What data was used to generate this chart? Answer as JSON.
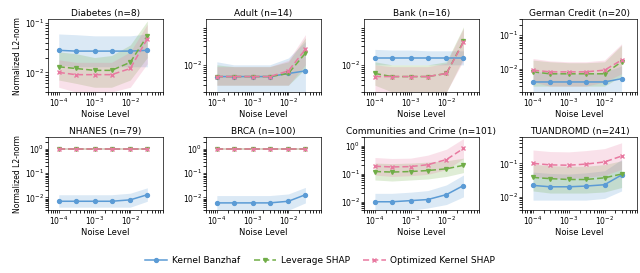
{
  "noise_levels": [
    0.0001,
    0.0003,
    0.001,
    0.003,
    0.01,
    0.03
  ],
  "panels": [
    {
      "title": "Diabetes (n=8)",
      "row": 0,
      "col": 0,
      "ylim": [
        0.004,
        0.12
      ],
      "yticks": [
        0.01,
        0.1
      ],
      "kb_mean": [
        0.028,
        0.027,
        0.027,
        0.027,
        0.027,
        0.028
      ],
      "kb_lo": [
        0.014,
        0.013,
        0.013,
        0.013,
        0.013,
        0.013
      ],
      "kb_hi": [
        0.06,
        0.058,
        0.055,
        0.055,
        0.055,
        0.06
      ],
      "ls_mean": [
        0.013,
        0.012,
        0.011,
        0.011,
        0.016,
        0.055
      ],
      "ls_lo": [
        0.007,
        0.006,
        0.005,
        0.005,
        0.007,
        0.02
      ],
      "ls_hi": [
        0.026,
        0.024,
        0.02,
        0.022,
        0.036,
        0.11
      ],
      "ok_mean": [
        0.01,
        0.009,
        0.009,
        0.009,
        0.012,
        0.048
      ],
      "ok_lo": [
        0.005,
        0.004,
        0.004,
        0.004,
        0.005,
        0.015
      ],
      "ok_hi": [
        0.018,
        0.016,
        0.016,
        0.016,
        0.026,
        0.095
      ]
    },
    {
      "title": "Adult (n=14)",
      "row": 0,
      "col": 1,
      "ylim": [
        0.002,
        0.15
      ],
      "yticks": [
        0.01
      ],
      "kb_mean": [
        0.005,
        0.005,
        0.005,
        0.005,
        0.006,
        0.007
      ],
      "kb_lo": [
        0.002,
        0.002,
        0.002,
        0.002,
        0.002,
        0.002
      ],
      "kb_hi": [
        0.012,
        0.01,
        0.01,
        0.01,
        0.015,
        0.04
      ],
      "ls_mean": [
        0.005,
        0.005,
        0.005,
        0.005,
        0.006,
        0.02
      ],
      "ls_lo": [
        0.003,
        0.003,
        0.003,
        0.003,
        0.003,
        0.008
      ],
      "ls_hi": [
        0.01,
        0.009,
        0.009,
        0.009,
        0.012,
        0.05
      ],
      "ok_mean": [
        0.005,
        0.005,
        0.005,
        0.005,
        0.007,
        0.025
      ],
      "ok_lo": [
        0.003,
        0.003,
        0.003,
        0.003,
        0.003,
        0.01
      ],
      "ok_hi": [
        0.009,
        0.009,
        0.009,
        0.009,
        0.013,
        0.06
      ]
    },
    {
      "title": "Bank (n=16)",
      "row": 0,
      "col": 2,
      "ylim": [
        0.002,
        0.15
      ],
      "yticks": [
        0.01
      ],
      "kb_mean": [
        0.015,
        0.015,
        0.015,
        0.015,
        0.015,
        0.015
      ],
      "kb_lo": [
        0.01,
        0.01,
        0.01,
        0.01,
        0.01,
        0.01
      ],
      "kb_hi": [
        0.025,
        0.024,
        0.024,
        0.023,
        0.023,
        0.023
      ],
      "ls_mean": [
        0.006,
        0.005,
        0.005,
        0.005,
        0.006,
        0.04
      ],
      "ls_lo": [
        0.003,
        0.002,
        0.002,
        0.002,
        0.002,
        0.015
      ],
      "ls_hi": [
        0.012,
        0.01,
        0.01,
        0.01,
        0.012,
        0.095
      ],
      "ok_mean": [
        0.005,
        0.005,
        0.005,
        0.005,
        0.006,
        0.038
      ],
      "ok_lo": [
        0.002,
        0.002,
        0.002,
        0.002,
        0.002,
        0.013
      ],
      "ok_hi": [
        0.01,
        0.009,
        0.009,
        0.009,
        0.011,
        0.088
      ]
    },
    {
      "title": "German Credit (n=20)",
      "row": 0,
      "col": 3,
      "ylim": [
        0.002,
        0.3
      ],
      "yticks": [
        0.01,
        0.1
      ],
      "kb_mean": [
        0.004,
        0.004,
        0.004,
        0.004,
        0.004,
        0.005
      ],
      "kb_lo": [
        0.002,
        0.002,
        0.002,
        0.002,
        0.002,
        0.002
      ],
      "kb_hi": [
        0.008,
        0.008,
        0.007,
        0.007,
        0.008,
        0.012
      ],
      "ls_mean": [
        0.008,
        0.007,
        0.007,
        0.007,
        0.007,
        0.016
      ],
      "ls_lo": [
        0.003,
        0.003,
        0.003,
        0.003,
        0.003,
        0.006
      ],
      "ls_hi": [
        0.018,
        0.016,
        0.015,
        0.015,
        0.016,
        0.05
      ],
      "ok_mean": [
        0.009,
        0.008,
        0.008,
        0.008,
        0.009,
        0.018
      ],
      "ok_lo": [
        0.004,
        0.003,
        0.003,
        0.003,
        0.004,
        0.007
      ],
      "ok_hi": [
        0.02,
        0.017,
        0.016,
        0.016,
        0.018,
        0.055
      ]
    },
    {
      "title": "NHANES (n=79)",
      "row": 1,
      "col": 0,
      "ylim": [
        0.003,
        3.0
      ],
      "yticks": [
        0.01,
        0.1,
        1.0
      ],
      "kb_mean": [
        0.007,
        0.007,
        0.007,
        0.007,
        0.008,
        0.013
      ],
      "kb_lo": [
        0.004,
        0.004,
        0.004,
        0.004,
        0.004,
        0.007
      ],
      "kb_hi": [
        0.013,
        0.013,
        0.013,
        0.013,
        0.015,
        0.025
      ],
      "ls_mean": [
        1.0,
        1.0,
        1.0,
        1.0,
        1.0,
        1.0
      ],
      "ls_lo": [
        0.92,
        0.92,
        0.92,
        0.92,
        0.92,
        0.92
      ],
      "ls_hi": [
        1.08,
        1.08,
        1.08,
        1.08,
        1.08,
        1.08
      ],
      "ok_mean": [
        1.0,
        1.0,
        1.0,
        1.0,
        1.0,
        1.0
      ],
      "ok_lo": [
        0.92,
        0.92,
        0.92,
        0.92,
        0.92,
        0.92
      ],
      "ok_hi": [
        1.08,
        1.08,
        1.08,
        1.08,
        1.08,
        1.08
      ]
    },
    {
      "title": "BRCA (n=100)",
      "row": 1,
      "col": 1,
      "ylim": [
        0.003,
        3.0
      ],
      "yticks": [
        0.01,
        0.1,
        1.0
      ],
      "kb_mean": [
        0.006,
        0.006,
        0.006,
        0.006,
        0.007,
        0.013
      ],
      "kb_lo": [
        0.003,
        0.003,
        0.003,
        0.003,
        0.003,
        0.006
      ],
      "kb_hi": [
        0.012,
        0.012,
        0.012,
        0.012,
        0.014,
        0.026
      ],
      "ls_mean": [
        1.0,
        1.0,
        1.0,
        1.0,
        1.0,
        1.0
      ],
      "ls_lo": [
        0.92,
        0.92,
        0.92,
        0.92,
        0.92,
        0.92
      ],
      "ls_hi": [
        1.08,
        1.08,
        1.08,
        1.08,
        1.08,
        1.08
      ],
      "ok_mean": [
        1.0,
        1.0,
        1.0,
        1.0,
        1.0,
        1.0
      ],
      "ok_lo": [
        0.92,
        0.92,
        0.92,
        0.92,
        0.92,
        0.92
      ],
      "ok_hi": [
        1.08,
        1.08,
        1.08,
        1.08,
        1.08,
        1.08
      ]
    },
    {
      "title": "Communities and Crime (n=101)",
      "row": 1,
      "col": 2,
      "ylim": [
        0.005,
        2.0
      ],
      "yticks": [
        0.01,
        0.1,
        1.0
      ],
      "kb_mean": [
        0.01,
        0.01,
        0.011,
        0.012,
        0.018,
        0.038
      ],
      "kb_lo": [
        0.005,
        0.005,
        0.005,
        0.006,
        0.008,
        0.015
      ],
      "kb_hi": [
        0.02,
        0.02,
        0.022,
        0.025,
        0.04,
        0.09
      ],
      "ls_mean": [
        0.12,
        0.115,
        0.12,
        0.13,
        0.15,
        0.2
      ],
      "ls_lo": [
        0.06,
        0.055,
        0.06,
        0.065,
        0.08,
        0.11
      ],
      "ls_hi": [
        0.24,
        0.23,
        0.24,
        0.26,
        0.29,
        0.36
      ],
      "ok_mean": [
        0.185,
        0.175,
        0.18,
        0.21,
        0.32,
        0.8
      ],
      "ok_lo": [
        0.09,
        0.08,
        0.085,
        0.095,
        0.14,
        0.35
      ],
      "ok_hi": [
        0.38,
        0.35,
        0.36,
        0.46,
        0.75,
        1.8
      ]
    },
    {
      "title": "TUANDROMD (n=241)",
      "row": 1,
      "col": 3,
      "ylim": [
        0.004,
        0.6
      ],
      "yticks": [
        0.01,
        0.1
      ],
      "kb_mean": [
        0.022,
        0.02,
        0.02,
        0.021,
        0.023,
        0.045
      ],
      "kb_lo": [
        0.008,
        0.008,
        0.008,
        0.008,
        0.009,
        0.015
      ],
      "kb_hi": [
        0.055,
        0.05,
        0.048,
        0.052,
        0.06,
        0.13
      ],
      "ls_mean": [
        0.038,
        0.035,
        0.033,
        0.033,
        0.037,
        0.048
      ],
      "ls_lo": [
        0.015,
        0.013,
        0.013,
        0.013,
        0.014,
        0.019
      ],
      "ls_hi": [
        0.095,
        0.085,
        0.082,
        0.082,
        0.092,
        0.12
      ],
      "ok_mean": [
        0.1,
        0.09,
        0.088,
        0.095,
        0.11,
        0.165
      ],
      "ok_lo": [
        0.04,
        0.036,
        0.035,
        0.038,
        0.044,
        0.066
      ],
      "ok_hi": [
        0.25,
        0.225,
        0.22,
        0.24,
        0.275,
        0.41
      ]
    }
  ],
  "colors": {
    "kb": "#5b9bd5",
    "ls": "#70ad47",
    "ok": "#e879a0"
  },
  "kb_alpha": 0.22,
  "ls_alpha": 0.22,
  "ok_alpha": 0.22,
  "ylabel": "Normalized L2-norm",
  "xlabel": "Noise Level"
}
